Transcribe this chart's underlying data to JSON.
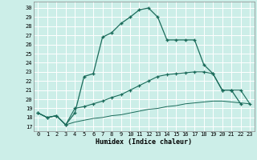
{
  "title": "",
  "xlabel": "Humidex (Indice chaleur)",
  "bg_color": "#cceee8",
  "grid_color": "#ffffff",
  "line_color": "#1a6b5a",
  "xlim": [
    -0.5,
    23.5
  ],
  "ylim": [
    16.5,
    30.7
  ],
  "yticks": [
    17,
    18,
    19,
    20,
    21,
    22,
    23,
    24,
    25,
    26,
    27,
    28,
    29,
    30
  ],
  "xticks": [
    0,
    1,
    2,
    3,
    4,
    5,
    6,
    7,
    8,
    9,
    10,
    11,
    12,
    13,
    14,
    15,
    16,
    17,
    18,
    19,
    20,
    21,
    22,
    23
  ],
  "line1_x": [
    0,
    1,
    2,
    3,
    4,
    5,
    6,
    7,
    8,
    9,
    10,
    11,
    12,
    13,
    14,
    15,
    16,
    17,
    18,
    19,
    20,
    21,
    22
  ],
  "line1_y": [
    18.5,
    18.0,
    18.2,
    17.2,
    18.5,
    22.5,
    22.8,
    26.8,
    27.3,
    28.3,
    29.0,
    29.8,
    30.0,
    29.0,
    26.5,
    26.5,
    26.5,
    26.5,
    23.8,
    22.8,
    21.0,
    21.0,
    19.5
  ],
  "line2_x": [
    0,
    1,
    2,
    3,
    4,
    5,
    6,
    7,
    8,
    9,
    10,
    11,
    12,
    13,
    14,
    15,
    16,
    17,
    18,
    19,
    20,
    21,
    22,
    23
  ],
  "line2_y": [
    18.5,
    18.0,
    18.2,
    17.2,
    19.0,
    19.2,
    19.5,
    19.8,
    20.2,
    20.5,
    21.0,
    21.5,
    22.0,
    22.5,
    22.7,
    22.8,
    22.9,
    23.0,
    23.0,
    22.8,
    21.0,
    21.0,
    21.0,
    19.5
  ],
  "line3_x": [
    0,
    1,
    2,
    3,
    4,
    5,
    6,
    7,
    8,
    9,
    10,
    11,
    12,
    13,
    14,
    15,
    16,
    17,
    18,
    19,
    20,
    21,
    22,
    23
  ],
  "line3_y": [
    18.5,
    18.0,
    18.2,
    17.2,
    17.5,
    17.7,
    17.9,
    18.0,
    18.2,
    18.3,
    18.5,
    18.7,
    18.9,
    19.0,
    19.2,
    19.3,
    19.5,
    19.6,
    19.7,
    19.8,
    19.8,
    19.7,
    19.6,
    19.5
  ]
}
